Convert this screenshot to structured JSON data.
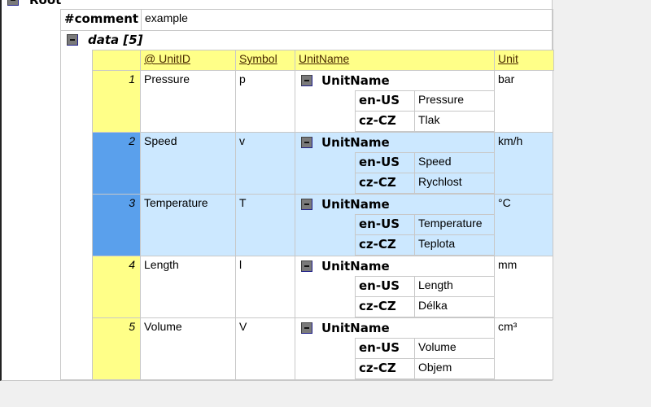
{
  "root": {
    "label": "Root"
  },
  "comment": {
    "key": "#comment",
    "value": "example"
  },
  "data_node": {
    "label": "data [5]"
  },
  "columns": [
    "@ UnitID",
    "Symbol",
    "UnitName",
    "Unit"
  ],
  "colors": {
    "header": "#ffff88",
    "selected_row": "#cce8ff",
    "selected_num": "#5aa0ec",
    "num": "#ffff88"
  },
  "rows": [
    {
      "num": "1",
      "id": "Pressure",
      "symbol": "p",
      "name_label": "UnitName",
      "names": [
        [
          "en-US",
          "Pressure"
        ],
        [
          "cz-CZ",
          "Tlak"
        ]
      ],
      "unit": "bar",
      "selected": false
    },
    {
      "num": "2",
      "id": "Speed",
      "symbol": "v",
      "name_label": "UnitName",
      "names": [
        [
          "en-US",
          "Speed"
        ],
        [
          "cz-CZ",
          "Rychlost"
        ]
      ],
      "unit": "km/h",
      "selected": true
    },
    {
      "num": "3",
      "id": "Temperature",
      "symbol": "T",
      "name_label": "UnitName",
      "names": [
        [
          "en-US",
          "Temperature"
        ],
        [
          "cz-CZ",
          "Teplota"
        ]
      ],
      "unit": "°C",
      "selected": true
    },
    {
      "num": "4",
      "id": "Length",
      "symbol": "l",
      "name_label": "UnitName",
      "names": [
        [
          "en-US",
          "Length"
        ],
        [
          "cz-CZ",
          "Délka"
        ]
      ],
      "unit": "mm",
      "selected": false
    },
    {
      "num": "5",
      "id": "Volume",
      "symbol": "V",
      "name_label": "UnitName",
      "names": [
        [
          "en-US",
          "Volume"
        ],
        [
          "cz-CZ",
          "Objem"
        ]
      ],
      "unit": "cm³",
      "selected": false
    }
  ]
}
